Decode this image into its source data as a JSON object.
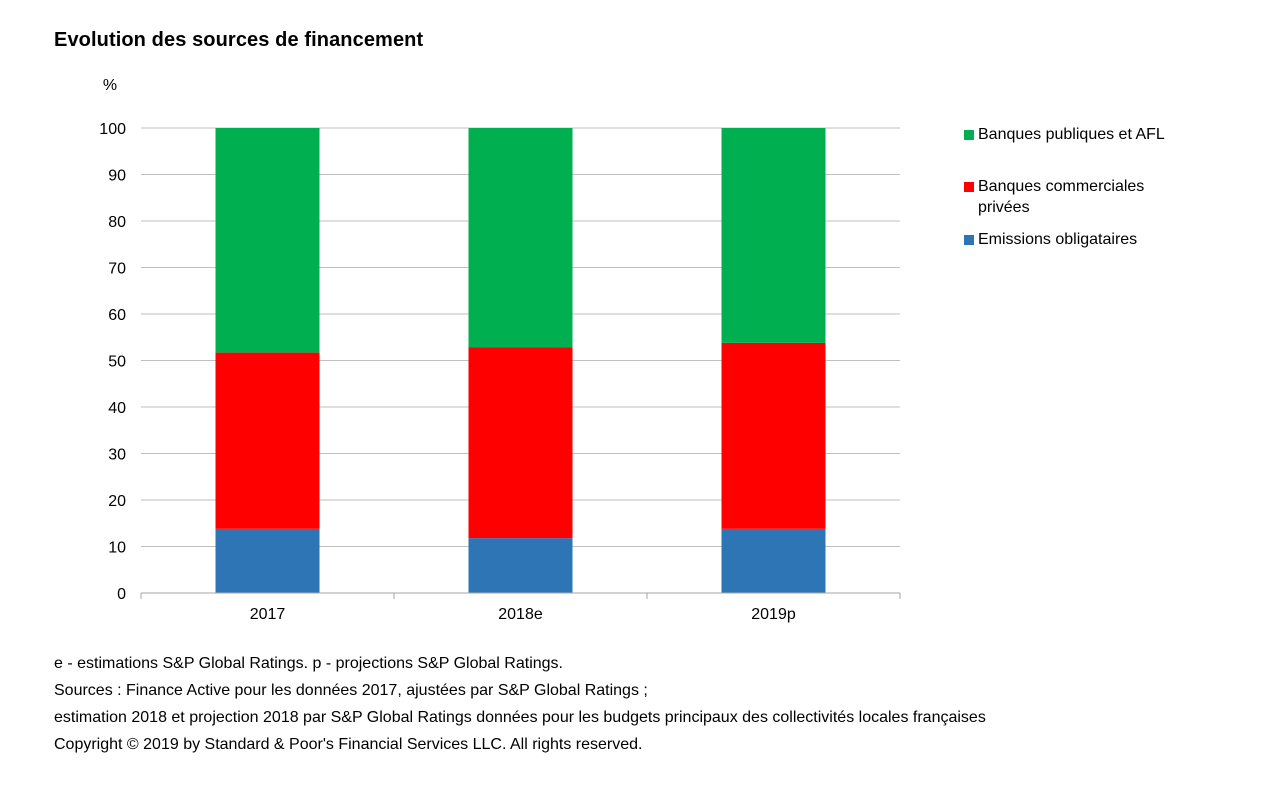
{
  "chart_data": {
    "type": "bar",
    "stacked": true,
    "title": "Evolution des sources de financement",
    "ylabel": "%",
    "xlabel": "",
    "categories": [
      "2017",
      "2018e",
      "2019p"
    ],
    "ylim": [
      0,
      100
    ],
    "yticks": [
      0,
      10,
      20,
      30,
      40,
      50,
      60,
      70,
      80,
      90,
      100
    ],
    "grid": true,
    "legend_position": "right",
    "series": [
      {
        "name": "Emissions obligataires",
        "color": "#2E75B6",
        "values": [
          13.8,
          11.8,
          13.8
        ]
      },
      {
        "name": "Banques commerciales privées",
        "color": "#FF0000",
        "values": [
          37.9,
          41.0,
          40.0
        ]
      },
      {
        "name": "Banques publiques et AFL",
        "color": "#00B050",
        "values": [
          48.3,
          47.2,
          46.2
        ]
      }
    ]
  },
  "legend": [
    {
      "label": "Banques publiques et AFL",
      "color": "#00B050"
    },
    {
      "label": "Banques commerciales privées",
      "color": "#FF0000"
    },
    {
      "label": "Emissions obligataires",
      "color": "#2E75B6"
    }
  ],
  "notes": [
    "e - estimations S&P Global Ratings. p - projections S&P Global Ratings.",
    "Sources : Finance Active pour les données 2017, ajustées par S&P Global Ratings ;",
    "estimation 2018 et projection 2018 par S&P Global Ratings données pour les budgets principaux des collectivités locales françaises",
    "Copyright © 2019 by Standard & Poor's Financial Services LLC. All rights reserved."
  ],
  "colors": {
    "gridline": "#BFBFBF",
    "axis": "#A6A6A6"
  }
}
